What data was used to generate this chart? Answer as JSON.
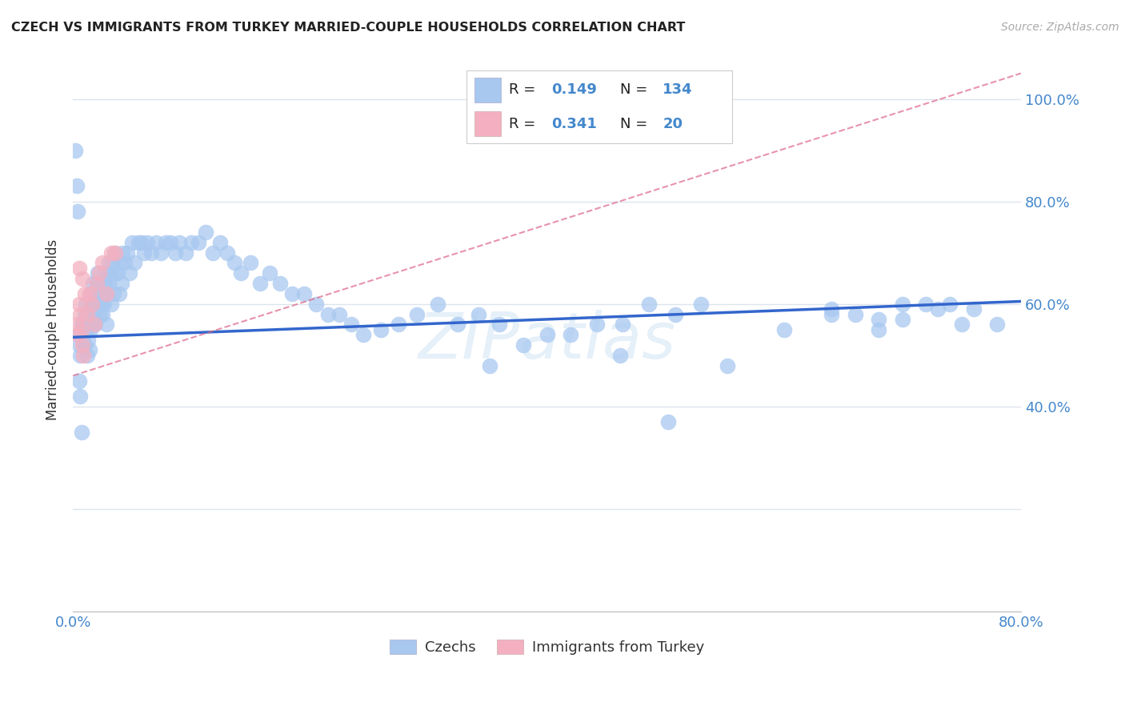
{
  "title": "CZECH VS IMMIGRANTS FROM TURKEY MARRIED-COUPLE HOUSEHOLDS CORRELATION CHART",
  "source": "Source: ZipAtlas.com",
  "ylabel": "Married-couple Households",
  "xlim": [
    0.0,
    0.8
  ],
  "ylim": [
    0.0,
    1.1
  ],
  "ytick_positions": [
    0.0,
    0.2,
    0.4,
    0.6,
    0.8,
    1.0
  ],
  "ytick_labels_right": [
    "",
    "",
    "40.0%",
    "60.0%",
    "80.0%",
    "100.0%"
  ],
  "xtick_positions": [
    0.0,
    0.1,
    0.2,
    0.3,
    0.4,
    0.5,
    0.6,
    0.7,
    0.8
  ],
  "xtick_labels": [
    "0.0%",
    "",
    "",
    "",
    "",
    "",
    "",
    "",
    "80.0%"
  ],
  "czechs_color": "#a8c8f0",
  "turkey_color": "#f4b0c0",
  "trend_czech_color": "#3366cc",
  "trend_turkey_color": "#dd6688",
  "trend_czech_x0": 0.0,
  "trend_czech_y0": 0.535,
  "trend_czech_x1": 0.8,
  "trend_czech_y1": 0.605,
  "trend_turkey_x0": 0.0,
  "trend_turkey_y0": 0.46,
  "trend_turkey_x1": 0.8,
  "trend_turkey_y1": 1.05,
  "legend_R_czech": "0.149",
  "legend_N_czech": "134",
  "legend_R_turkey": "0.341",
  "legend_N_turkey": "20",
  "watermark": "ZIPatlas",
  "background_color": "#ffffff",
  "grid_color": "#dde4ee",
  "tick_color": "#4488cc",
  "czechs_x": [
    0.005,
    0.005,
    0.006,
    0.007,
    0.008,
    0.009,
    0.01,
    0.01,
    0.01,
    0.011,
    0.011,
    0.012,
    0.012,
    0.013,
    0.013,
    0.014,
    0.014,
    0.015,
    0.015,
    0.015,
    0.016,
    0.016,
    0.017,
    0.017,
    0.018,
    0.018,
    0.019,
    0.019,
    0.02,
    0.02,
    0.021,
    0.021,
    0.022,
    0.022,
    0.023,
    0.023,
    0.024,
    0.024,
    0.025,
    0.025,
    0.026,
    0.026,
    0.027,
    0.027,
    0.028,
    0.028,
    0.03,
    0.03,
    0.031,
    0.032,
    0.033,
    0.034,
    0.035,
    0.036,
    0.038,
    0.039,
    0.04,
    0.041,
    0.042,
    0.044,
    0.046,
    0.048,
    0.05,
    0.052,
    0.055,
    0.058,
    0.06,
    0.063,
    0.066,
    0.07,
    0.074,
    0.078,
    0.082,
    0.086,
    0.09,
    0.095,
    0.1,
    0.106,
    0.112,
    0.118,
    0.124,
    0.13,
    0.136,
    0.142,
    0.15,
    0.158,
    0.166,
    0.175,
    0.185,
    0.195,
    0.205,
    0.215,
    0.225,
    0.235,
    0.245,
    0.26,
    0.275,
    0.29,
    0.308,
    0.325,
    0.342,
    0.36,
    0.38,
    0.4,
    0.42,
    0.442,
    0.464,
    0.486,
    0.508,
    0.53,
    0.352,
    0.462,
    0.502,
    0.552,
    0.6,
    0.64,
    0.68,
    0.7,
    0.64,
    0.66,
    0.68,
    0.7,
    0.72,
    0.74,
    0.76,
    0.78,
    0.73,
    0.75,
    0.002,
    0.003,
    0.004,
    0.005,
    0.006,
    0.007
  ],
  "czechs_y": [
    0.54,
    0.52,
    0.5,
    0.56,
    0.53,
    0.55,
    0.58,
    0.56,
    0.52,
    0.6,
    0.57,
    0.55,
    0.5,
    0.58,
    0.53,
    0.56,
    0.51,
    0.62,
    0.59,
    0.55,
    0.6,
    0.56,
    0.64,
    0.6,
    0.62,
    0.58,
    0.6,
    0.56,
    0.64,
    0.6,
    0.66,
    0.62,
    0.64,
    0.6,
    0.62,
    0.58,
    0.64,
    0.6,
    0.62,
    0.58,
    0.64,
    0.6,
    0.66,
    0.62,
    0.64,
    0.56,
    0.68,
    0.64,
    0.66,
    0.6,
    0.68,
    0.62,
    0.7,
    0.66,
    0.66,
    0.62,
    0.68,
    0.64,
    0.7,
    0.68,
    0.7,
    0.66,
    0.72,
    0.68,
    0.72,
    0.72,
    0.7,
    0.72,
    0.7,
    0.72,
    0.7,
    0.72,
    0.72,
    0.7,
    0.72,
    0.7,
    0.72,
    0.72,
    0.74,
    0.7,
    0.72,
    0.7,
    0.68,
    0.66,
    0.68,
    0.64,
    0.66,
    0.64,
    0.62,
    0.62,
    0.6,
    0.58,
    0.58,
    0.56,
    0.54,
    0.55,
    0.56,
    0.58,
    0.6,
    0.56,
    0.58,
    0.56,
    0.52,
    0.54,
    0.54,
    0.56,
    0.56,
    0.6,
    0.58,
    0.6,
    0.48,
    0.5,
    0.37,
    0.48,
    0.55,
    0.58,
    0.57,
    0.6,
    0.59,
    0.58,
    0.55,
    0.57,
    0.6,
    0.6,
    0.59,
    0.56,
    0.59,
    0.56,
    0.9,
    0.83,
    0.78,
    0.45,
    0.42,
    0.35
  ],
  "turkey_x": [
    0.003,
    0.004,
    0.005,
    0.006,
    0.007,
    0.008,
    0.009,
    0.01,
    0.012,
    0.014,
    0.016,
    0.018,
    0.02,
    0.022,
    0.025,
    0.028,
    0.032,
    0.036,
    0.005,
    0.008
  ],
  "turkey_y": [
    0.56,
    0.54,
    0.6,
    0.58,
    0.55,
    0.52,
    0.5,
    0.62,
    0.58,
    0.62,
    0.6,
    0.56,
    0.64,
    0.66,
    0.68,
    0.62,
    0.7,
    0.7,
    0.67,
    0.65
  ]
}
